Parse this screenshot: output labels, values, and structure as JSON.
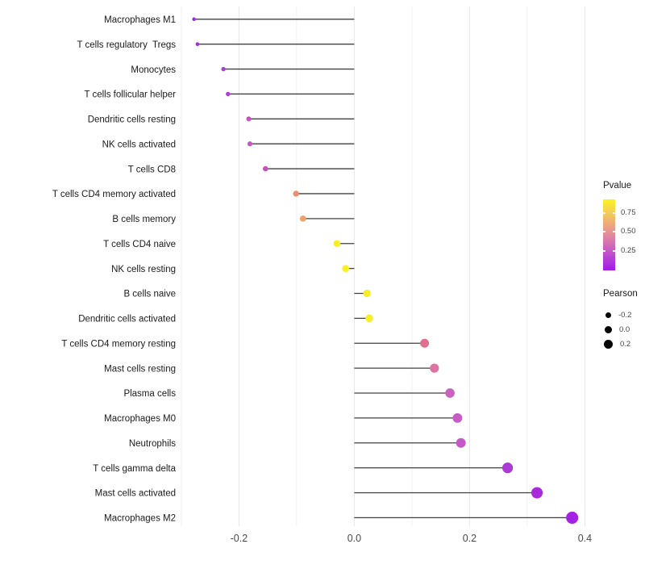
{
  "chart_data": {
    "type": "lollipop",
    "title": "",
    "xlabel": "",
    "ylabel": "",
    "xlim": [
      -0.313,
      0.413
    ],
    "grid": "vertical-only",
    "x_major_ticks": [
      -0.2,
      0.0,
      0.2,
      0.4
    ],
    "x_tick_labels": [
      "-0.2",
      "0.0",
      "0.2",
      "0.4"
    ],
    "x_minor_gridlines": [
      -0.3,
      -0.1,
      0.1,
      0.3
    ],
    "points": [
      {
        "label": "Macrophages M1",
        "pearson": -0.278,
        "dot_color": "#a32adc"
      },
      {
        "label": "T cells regulatory  Tregs",
        "pearson": -0.272,
        "dot_color": "#a42cda"
      },
      {
        "label": "Monocytes",
        "pearson": -0.227,
        "dot_color": "#ac3dd2"
      },
      {
        "label": "T cells follicular helper",
        "pearson": -0.219,
        "dot_color": "#ae41d0"
      },
      {
        "label": "Dendritic cells resting",
        "pearson": -0.183,
        "dot_color": "#c456c3"
      },
      {
        "label": "NK cells activated",
        "pearson": -0.181,
        "dot_color": "#c458c1"
      },
      {
        "label": "T cells CD8",
        "pearson": -0.154,
        "dot_color": "#c851b7"
      },
      {
        "label": "T cells CD4 memory activated",
        "pearson": -0.101,
        "dot_color": "#e98f70"
      },
      {
        "label": "B cells memory",
        "pearson": -0.089,
        "dot_color": "#efa169"
      },
      {
        "label": "T cells CD4 naive",
        "pearson": -0.03,
        "dot_color": "#f8ee26"
      },
      {
        "label": "NK cells resting",
        "pearson": -0.015,
        "dot_color": "#f8f020"
      },
      {
        "label": "B cells naive",
        "pearson": 0.022,
        "dot_color": "#f8ee26"
      },
      {
        "label": "Dendritic cells activated",
        "pearson": 0.026,
        "dot_color": "#f7ed2a"
      },
      {
        "label": "T cells CD4 memory resting",
        "pearson": 0.122,
        "dot_color": "#e0708f"
      },
      {
        "label": "Mast cells resting",
        "pearson": 0.139,
        "dot_color": "#de72a2"
      },
      {
        "label": "Plasma cells",
        "pearson": 0.166,
        "dot_color": "#cb63be"
      },
      {
        "label": "Macrophages M0",
        "pearson": 0.179,
        "dot_color": "#c75cc4"
      },
      {
        "label": "Neutrophils",
        "pearson": 0.185,
        "dot_color": "#c45ac8"
      },
      {
        "label": "T cells gamma delta",
        "pearson": 0.266,
        "dot_color": "#ac3bd6"
      },
      {
        "label": "Mast cells activated",
        "pearson": 0.317,
        "dot_color": "#a72bdb"
      },
      {
        "label": "Macrophages M2",
        "pearson": 0.378,
        "dot_color": "#a322e2"
      }
    ],
    "legend_pvalue": {
      "title": "Pvalue",
      "ticks": [
        "0.75",
        "0.50",
        "0.25"
      ],
      "gradient_top_color": "#fbf41e",
      "gradient_mid_color": "#e28b9c",
      "gradient_bottom_color": "#a319e8"
    },
    "legend_pearson": {
      "title": "Pearson",
      "items": [
        {
          "label": "-0.2"
        },
        {
          "label": "0.0"
        },
        {
          "label": "0.2"
        }
      ]
    },
    "colors": {
      "stem": "#404040",
      "gridline_major": "#e7e7e7",
      "gridline_minor": "#f1f1f1",
      "axis_text": "#4a4a4a",
      "label_text": "#1a1a1a",
      "background": "#ffffff"
    }
  }
}
